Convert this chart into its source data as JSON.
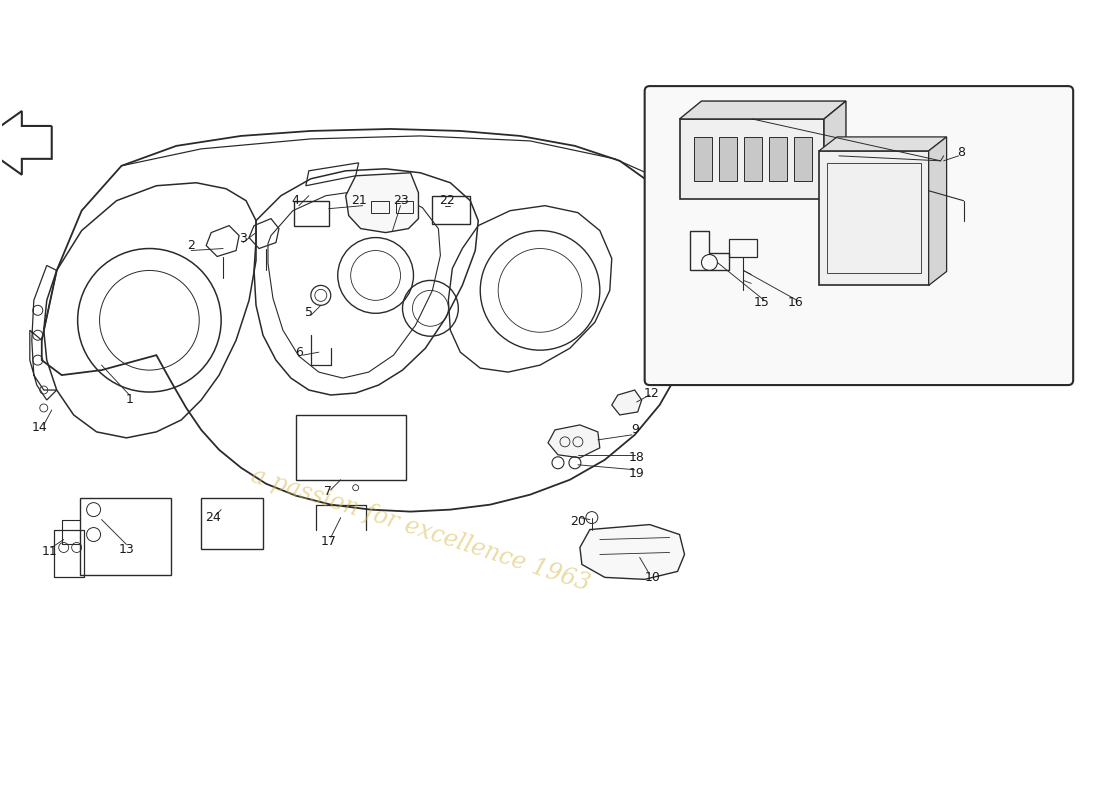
{
  "bg_color": "#ffffff",
  "line_color": "#2a2a2a",
  "label_color": "#1a1a1a",
  "watermark_text": "a passion for excellence 1963",
  "watermark_color": "#d4b84a",
  "watermark_alpha": 0.5,
  "lw": 1.1
}
